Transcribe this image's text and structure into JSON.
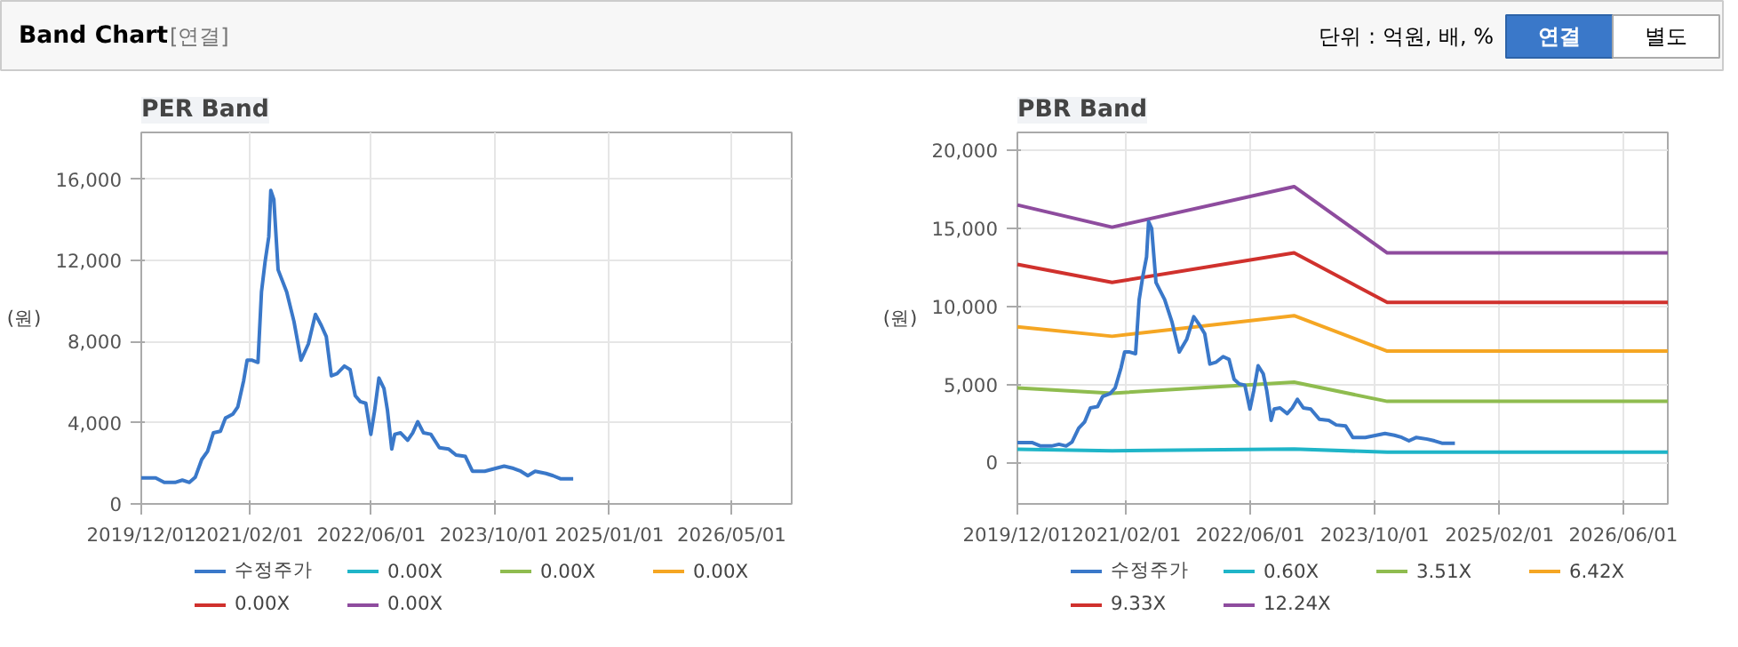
{
  "chart_data": [
    {
      "type": "line",
      "title": "PER Band",
      "ylabel": "(원)",
      "annotations": [
        "Band Chart",
        "[연결]",
        "단위 : 억원, 배, %",
        "연결",
        "별도"
      ],
      "xlim": [
        "2019-12-01",
        "2026-12-25"
      ],
      "ylim": [
        0,
        18300
      ],
      "xticks": [
        {
          "value": "2019-12-01",
          "label": "2019/12/01"
        },
        {
          "value": "2021-02-01",
          "label": "2021/02/01"
        },
        {
          "value": "2022-06-01",
          "label": "2022/06/01"
        },
        {
          "value": "2023-10-01",
          "label": "2023/10/01"
        },
        {
          "value": "2025-01-01",
          "label": "2025/01/01"
        },
        {
          "value": "2026-05-01",
          "label": "2026/05/01"
        }
      ],
      "yticks": [
        0,
        {
          "value": 4000,
          "label": "4,000"
        },
        {
          "value": 8000,
          "label": "8,000"
        },
        {
          "value": 12000,
          "label": "12,000"
        },
        {
          "value": 16000,
          "label": "16,000"
        }
      ],
      "grid": true,
      "legend": "bottom",
      "series": [
        {
          "name": "수정주가",
          "color": "#3a78c9",
          "x": [
            "2019-12-01",
            "2020-01-27",
            "2020-03-01",
            "2020-04-13",
            "2020-05-12",
            "2020-06-09",
            "2020-07-02",
            "2020-07-28",
            "2020-08-20",
            "2020-09-12",
            "2020-10-10",
            "2020-10-30",
            "2020-11-28",
            "2020-12-18",
            "2021-01-10",
            "2021-01-24",
            "2021-02-13",
            "2021-03-08",
            "2021-03-22",
            "2021-04-05",
            "2021-04-20",
            "2021-04-28",
            "2021-05-10",
            "2021-05-27",
            "2021-06-30",
            "2021-07-29",
            "2021-08-26",
            "2021-09-24",
            "2021-10-22",
            "2021-11-14",
            "2021-12-04",
            "2021-12-24",
            "2022-01-16",
            "2022-02-14",
            "2022-03-09",
            "2022-03-29",
            "2022-04-18",
            "2022-05-10",
            "2022-05-30",
            "2022-06-14",
            "2022-07-01",
            "2022-07-21",
            "2022-08-04",
            "2022-08-21",
            "2022-09-02",
            "2022-09-25",
            "2022-10-23",
            "2022-11-12",
            "2022-12-02",
            "2022-12-25",
            "2023-01-23",
            "2023-02-26",
            "2023-04-04",
            "2023-05-03",
            "2023-06-09",
            "2023-07-07",
            "2023-08-25",
            "2023-10-07",
            "2023-11-10",
            "2023-12-17",
            "2024-01-15",
            "2024-02-12",
            "2024-03-12",
            "2024-04-24",
            "2024-05-22",
            "2024-06-20",
            "2024-08-10"
          ],
          "values": [
            1280,
            1280,
            1060,
            1060,
            1170,
            1060,
            1310,
            2190,
            2590,
            3500,
            3580,
            4230,
            4420,
            4780,
            6060,
            7080,
            7080,
            6970,
            10440,
            11900,
            13170,
            15440,
            15000,
            11530,
            10440,
            8980,
            7080,
            7880,
            9340,
            8800,
            8250,
            6310,
            6420,
            6790,
            6610,
            5330,
            5040,
            4960,
            3430,
            4600,
            6200,
            5690,
            4600,
            2700,
            3430,
            3500,
            3140,
            3500,
            4050,
            3500,
            3430,
            2770,
            2700,
            2410,
            2340,
            1610,
            1610,
            1750,
            1860,
            1750,
            1610,
            1390,
            1610,
            1500,
            1390,
            1240,
            1240
          ]
        },
        {
          "name": "0.00X",
          "color": "#1fb5c8",
          "values": [
            null,
            null
          ]
        },
        {
          "name": "0.00X",
          "color": "#8fbc4f",
          "values": [
            null,
            null
          ]
        },
        {
          "name": "0.00X",
          "color": "#f5a623",
          "values": [
            null,
            null
          ]
        },
        {
          "name": "0.00X",
          "color": "#d0312d",
          "values": [
            null,
            null
          ]
        },
        {
          "name": "0.00X",
          "color": "#8e4c9e",
          "values": [
            null,
            null
          ]
        }
      ]
    },
    {
      "type": "line",
      "title": "PBR Band",
      "ylabel": "(원)",
      "xlim": [
        "2019-12-01",
        "2026-11-22"
      ],
      "ylim": [
        -2650,
        21150
      ],
      "xticks": [
        {
          "value": "2019-12-01",
          "label": "2019/12/01"
        },
        {
          "value": "2021-02-01",
          "label": "2021/02/01"
        },
        {
          "value": "2022-06-01",
          "label": "2022/06/01"
        },
        {
          "value": "2023-10-01",
          "label": "2023/10/01"
        },
        {
          "value": "2025-02-01",
          "label": "2025/02/01"
        },
        {
          "value": "2026-06-01",
          "label": "2026/06/01"
        }
      ],
      "yticks": [
        0,
        {
          "value": 5000,
          "label": "5,000"
        },
        {
          "value": 10000,
          "label": "10,000"
        },
        {
          "value": 15000,
          "label": "15,000"
        },
        {
          "value": 20000,
          "label": "20,000"
        }
      ],
      "grid": true,
      "legend": "bottom",
      "series": [
        {
          "name": "수정주가",
          "color": "#3a78c9",
          "x": [
            "2019-12-01",
            "2020-01-27",
            "2020-03-01",
            "2020-04-13",
            "2020-05-12",
            "2020-06-09",
            "2020-07-02",
            "2020-07-28",
            "2020-08-20",
            "2020-09-12",
            "2020-10-10",
            "2020-10-30",
            "2020-11-28",
            "2020-12-18",
            "2021-01-10",
            "2021-01-24",
            "2021-02-13",
            "2021-03-08",
            "2021-03-22",
            "2021-04-05",
            "2021-04-20",
            "2021-04-28",
            "2021-05-10",
            "2021-05-27",
            "2021-06-30",
            "2021-07-29",
            "2021-08-26",
            "2021-09-24",
            "2021-10-22",
            "2021-11-14",
            "2021-12-04",
            "2021-12-24",
            "2022-01-16",
            "2022-02-14",
            "2022-03-09",
            "2022-03-29",
            "2022-04-18",
            "2022-05-10",
            "2022-05-30",
            "2022-06-14",
            "2022-07-01",
            "2022-07-21",
            "2022-08-04",
            "2022-08-21",
            "2022-09-02",
            "2022-09-25",
            "2022-10-23",
            "2022-11-12",
            "2022-12-02",
            "2022-12-25",
            "2023-01-23",
            "2023-02-26",
            "2023-04-04",
            "2023-05-03",
            "2023-06-09",
            "2023-07-07",
            "2023-08-25",
            "2023-10-07",
            "2023-11-10",
            "2023-12-17",
            "2024-01-15",
            "2024-02-12",
            "2024-03-12",
            "2024-04-24",
            "2024-05-22",
            "2024-06-20",
            "2024-08-10"
          ],
          "values": [
            1280,
            1280,
            1060,
            1060,
            1170,
            1060,
            1310,
            2190,
            2590,
            3500,
            3580,
            4230,
            4420,
            4780,
            6060,
            7080,
            7080,
            6970,
            10440,
            11900,
            13170,
            15440,
            15000,
            11530,
            10440,
            8980,
            7080,
            7880,
            9340,
            8800,
            8250,
            6310,
            6420,
            6790,
            6610,
            5330,
            5040,
            4960,
            3430,
            4600,
            6200,
            5690,
            4600,
            2700,
            3430,
            3500,
            3140,
            3500,
            4050,
            3500,
            3430,
            2770,
            2700,
            2410,
            2340,
            1610,
            1610,
            1750,
            1860,
            1750,
            1610,
            1390,
            1610,
            1500,
            1390,
            1240,
            1240
          ]
        },
        {
          "name": "0.60X",
          "color": "#1fb5c8",
          "x": [
            "2019-12-01",
            "2020-12-06",
            "2022-11-19",
            "2023-11-19",
            "2026-11-22"
          ],
          "values": [
            850,
            750,
            870,
            660,
            660
          ]
        },
        {
          "name": "3.51X",
          "color": "#8fbc4f",
          "x": [
            "2019-12-01",
            "2020-12-06",
            "2022-11-19",
            "2023-11-19",
            "2026-11-22"
          ],
          "values": [
            4780,
            4440,
            5150,
            3920,
            3920
          ]
        },
        {
          "name": "6.42X",
          "color": "#f5a623",
          "x": [
            "2019-12-01",
            "2020-12-06",
            "2022-11-19",
            "2023-11-19",
            "2026-11-22"
          ],
          "values": [
            8700,
            8090,
            9410,
            7140,
            7140
          ]
        },
        {
          "name": "9.33X",
          "color": "#d0312d",
          "x": [
            "2019-12-01",
            "2020-12-06",
            "2022-11-19",
            "2023-11-19",
            "2026-11-22"
          ],
          "values": [
            12690,
            11540,
            13430,
            10260,
            10260
          ]
        },
        {
          "name": "12.24X",
          "color": "#8e4c9e",
          "x": [
            "2019-12-01",
            "2020-12-06",
            "2022-11-19",
            "2023-11-19",
            "2026-11-22"
          ],
          "values": [
            16500,
            15080,
            17680,
            13430,
            13430
          ]
        }
      ]
    }
  ]
}
